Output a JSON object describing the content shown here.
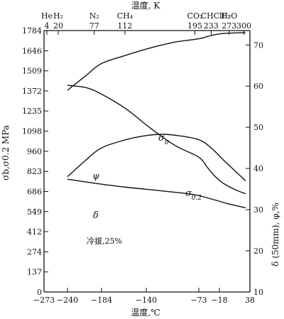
{
  "chart_data": {
    "type": "line",
    "title_top": "温度, K",
    "xlabel": "温度,℃",
    "ylabel_left": "σb,σ0.2 MPa",
    "ylabel_right": "δ (50mm), φ,%",
    "annotation": "冷拔,25%",
    "x_ticks": [
      -273,
      -240,
      -184,
      -140,
      -73,
      -18,
      38
    ],
    "x_tick_labels": [
      "−273",
      "−240",
      "−184",
      "−140",
      "−73",
      "−18",
      "38"
    ],
    "xlim": [
      -273,
      38
    ],
    "top_ticks": [
      {
        "k": 4,
        "label": "4"
      },
      {
        "k": 20,
        "label": "20"
      },
      {
        "k": 77,
        "label": "77"
      },
      {
        "k": 112,
        "label": "112"
      },
      {
        "k": 195,
        "label": "195"
      },
      {
        "k": 233,
        "label": "233"
      },
      {
        "k": 273,
        "label": "273"
      },
      {
        "k": 300,
        "label": "300"
      }
    ],
    "top_substances": [
      {
        "k": 4,
        "label": "He"
      },
      {
        "k": 20,
        "label": "H₂"
      },
      {
        "k": 77,
        "label": "N₂"
      },
      {
        "k": 112,
        "label": "CH₄"
      },
      {
        "k": 195,
        "label": "CO₂"
      },
      {
        "k": 245,
        "label": "CHClF₂"
      },
      {
        "k": 273,
        "label": "H₂O"
      }
    ],
    "y_left_ticks": [
      0,
      137,
      274,
      412,
      549,
      686,
      823,
      960,
      1098,
      1235,
      1372,
      1509,
      1646,
      1784
    ],
    "y_left_labels": [
      "0",
      "137",
      "274",
      "412",
      "549",
      "686",
      "823",
      "960",
      "1098",
      "1235",
      "1372",
      "1509",
      "1646",
      "1784"
    ],
    "ylim_left": [
      0,
      1784
    ],
    "y_right_ticks": [
      10,
      20,
      30,
      40,
      50,
      60,
      70
    ],
    "y_right_labels": [
      "10",
      "20",
      "30",
      "40",
      "50",
      "60",
      "70"
    ],
    "ylim_right": [
      10,
      73.5
    ],
    "series": [
      {
        "name": "σb",
        "axis": "left",
        "x": [
          -240,
          -210,
          -184,
          -160,
          -140,
          -120,
          -100,
          -73,
          -50,
          -30,
          -10,
          10,
          30
        ],
        "y": [
          1410,
          1395,
          1350,
          1250,
          1140,
          1060,
          990,
          920,
          850,
          790,
          740,
          700,
          670
        ]
      },
      {
        "name": "σ0.2",
        "axis": "left",
        "x": [
          -240,
          -200,
          -160,
          -120,
          -80,
          -40,
          0,
          30
        ],
        "y": [
          770,
          745,
          715,
          690,
          665,
          635,
          600,
          575
        ]
      },
      {
        "name": "ψ",
        "axis": "right",
        "x": [
          -240,
          -210,
          -184,
          -160,
          -140,
          -120,
          -100,
          -73,
          -40,
          -10,
          30
        ],
        "y": [
          59,
          62.5,
          65.5,
          67.5,
          69,
          70,
          70.8,
          71.5,
          72.3,
          72.8,
          73
        ]
      },
      {
        "name": "δ",
        "axis": "right",
        "x": [
          -240,
          -210,
          -184,
          -160,
          -140,
          -120,
          -100,
          -73,
          -40,
          -10,
          30
        ],
        "y": [
          38,
          42,
          45,
          47,
          48,
          48.3,
          48,
          47,
          45,
          42,
          37
        ]
      }
    ],
    "labels": {
      "sigma_b": {
        "main": "σ",
        "sub": "b"
      },
      "sigma_02": {
        "main": "σ",
        "sub": "0.2"
      },
      "psi": "ψ",
      "delta": "δ"
    }
  }
}
